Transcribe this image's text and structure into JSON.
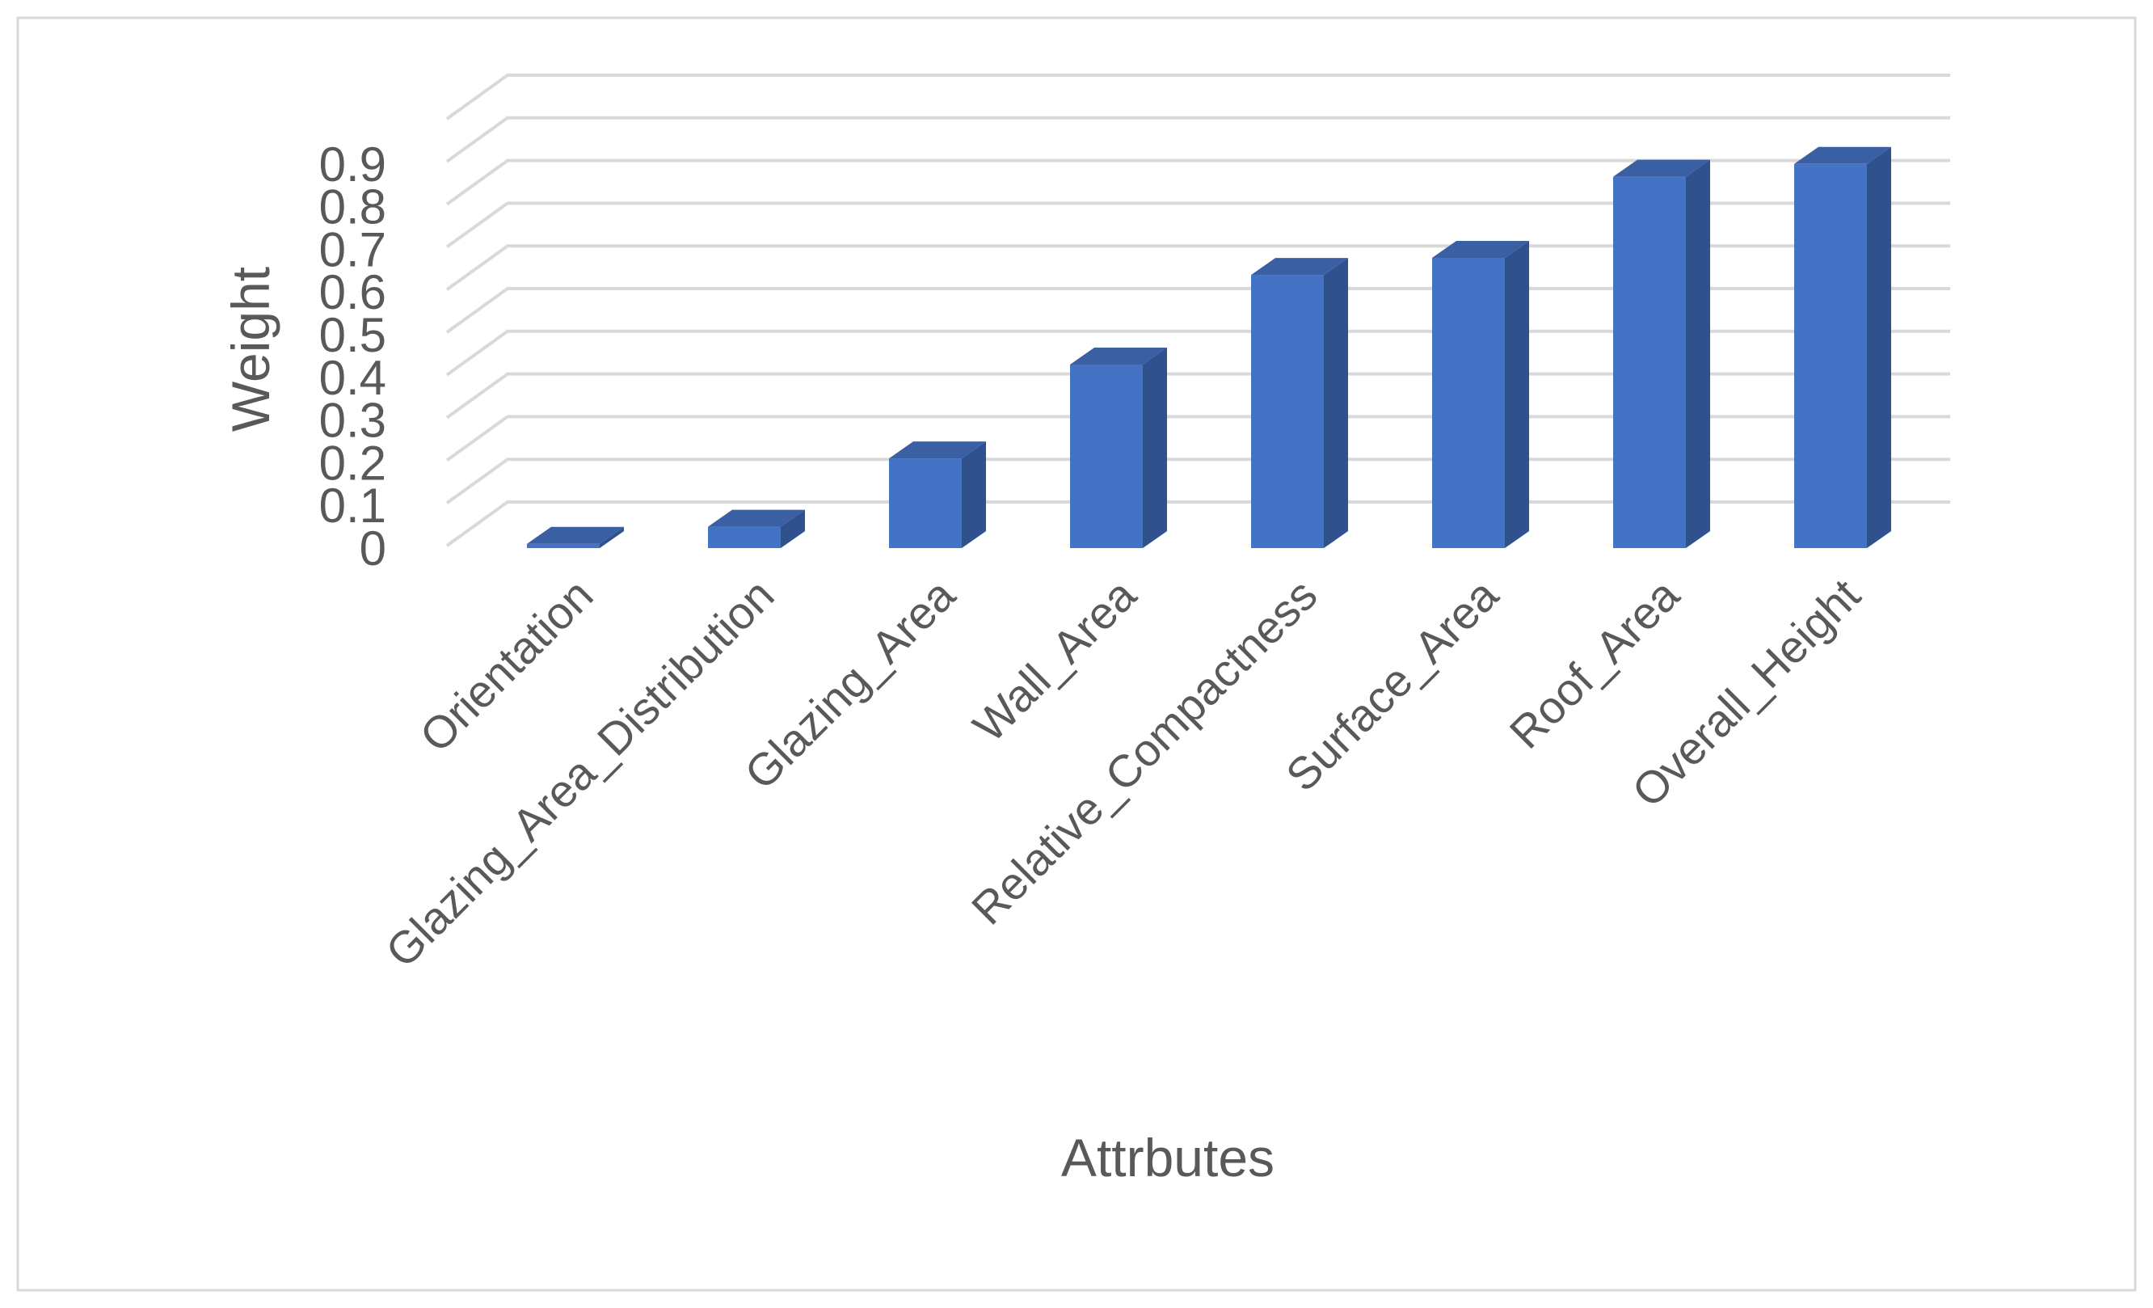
{
  "chart_data": {
    "type": "bar",
    "categories": [
      "Orientation",
      "Glazing_Area_Distribution",
      "Glazing_Area",
      "Wall_Area",
      "Relative_Compactness",
      "Surface_Area",
      "Roof_Area",
      "Overall_Height"
    ],
    "values": [
      0.01,
      0.05,
      0.21,
      0.43,
      0.64,
      0.68,
      0.87,
      0.9
    ],
    "ylim": [
      0,
      0.9
    ],
    "yticks": [
      "0",
      "0.1",
      "0.2",
      "0.3",
      "0.4",
      "0.5",
      "0.6",
      "0.7",
      "0.8",
      "0.9"
    ],
    "xlabel": "Attrbutes",
    "ylabel": "Weight",
    "grid": true,
    "style": "3d-column",
    "colors": {
      "bar_front": "#4472c4",
      "bar_side": "#2f528f",
      "bar_top": "#3a5fa3",
      "grid": "#d9d9d9",
      "text": "#595959",
      "frame": "#d9d9d9"
    }
  }
}
